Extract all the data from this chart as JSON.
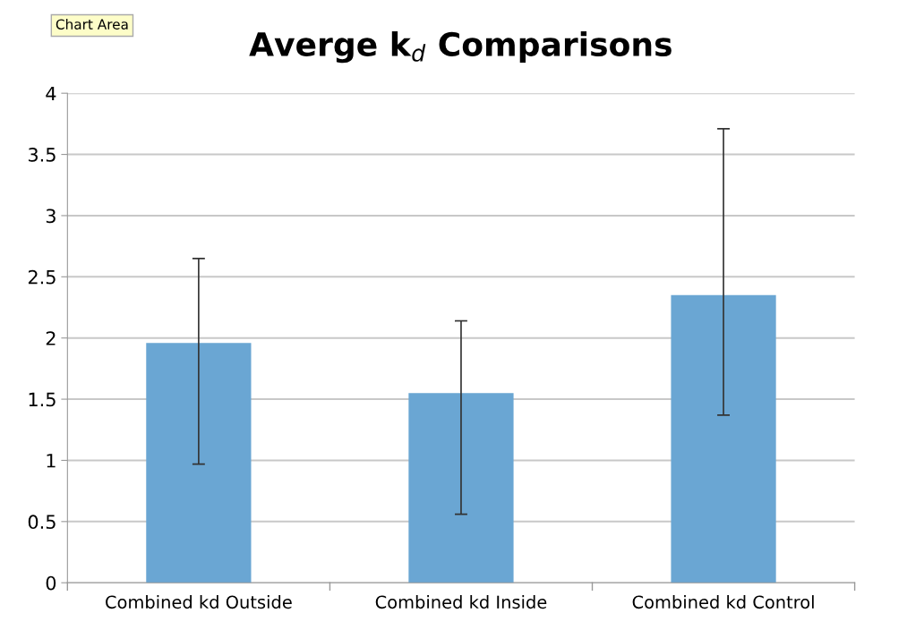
{
  "chart_data": {
    "type": "bar",
    "title": "Averge k$_{d}$ Comparisons",
    "categories": [
      "Combined kd Outside",
      "Combined kd Inside",
      "Combined kd Control"
    ],
    "values": [
      1.96,
      1.55,
      2.35
    ],
    "errors": [
      [
        0.97,
        2.65
      ],
      [
        0.56,
        2.14
      ],
      [
        1.37,
        3.71
      ]
    ],
    "color": "#6aa6d3",
    "ylim": [
      0,
      4
    ],
    "yticks": [
      0,
      0.5,
      1,
      1.5,
      2,
      2.5,
      3,
      3.5,
      4
    ],
    "grid": "y",
    "annotations": [
      "Chart Area"
    ]
  }
}
